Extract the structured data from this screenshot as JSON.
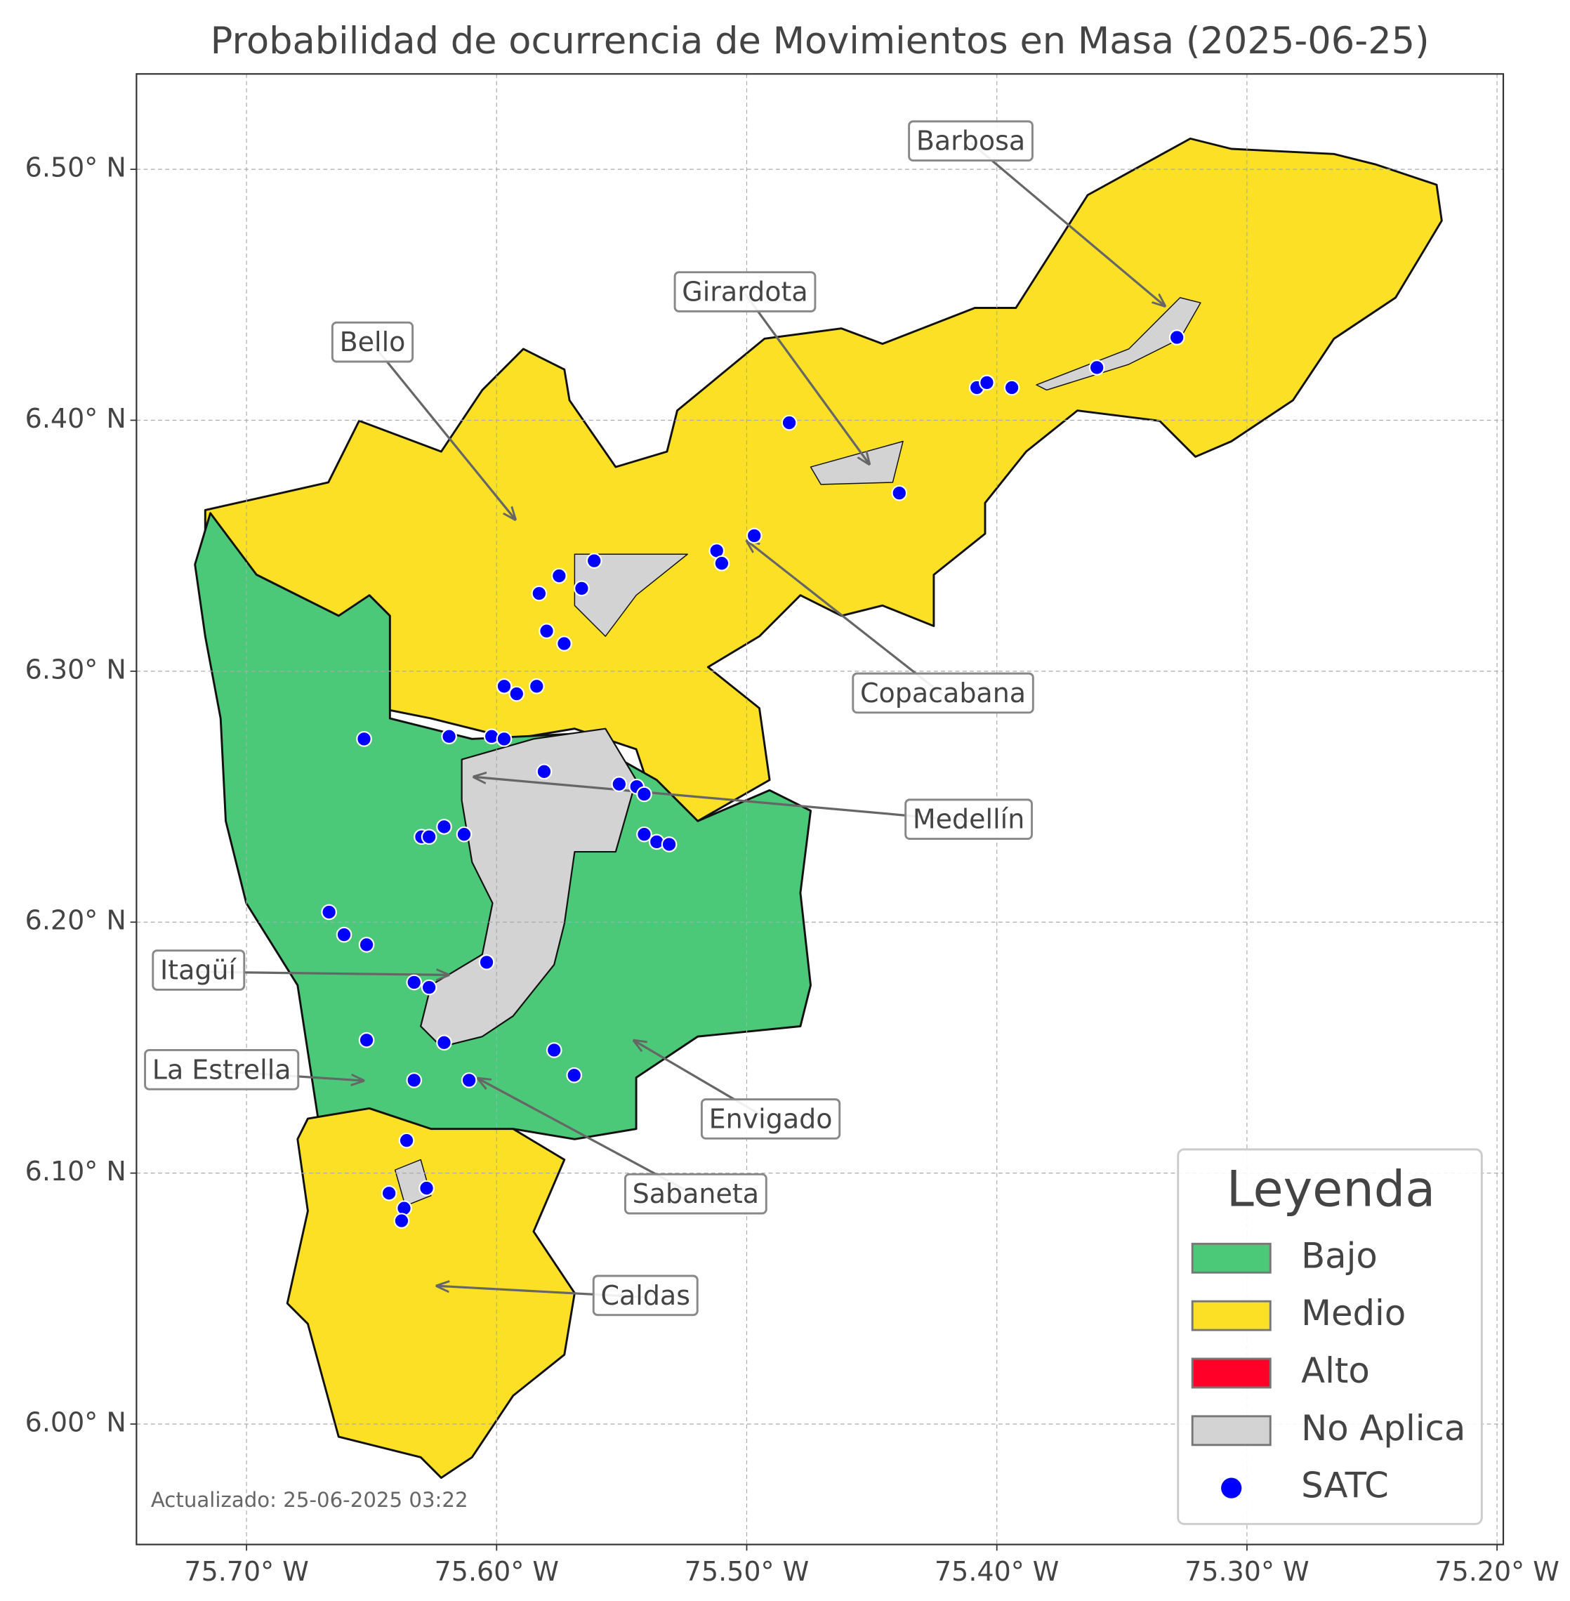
{
  "chart_data": {
    "type": "map",
    "title": "Probabilidad de ocurrencia de Movimientos en Masa (2025-06-25)",
    "xlim": [
      -75.744,
      -75.1975
    ],
    "ylim": [
      5.952,
      6.538
    ],
    "xticks": [
      {
        "value": -75.7,
        "label": "75.70° W"
      },
      {
        "value": -75.6,
        "label": "75.60° W"
      },
      {
        "value": -75.5,
        "label": "75.50° W"
      },
      {
        "value": -75.4,
        "label": "75.40° W"
      },
      {
        "value": -75.3,
        "label": "75.30° W"
      },
      {
        "value": -75.2,
        "label": "75.20° W"
      }
    ],
    "yticks": [
      {
        "value": 6.0,
        "label": "6.00° N"
      },
      {
        "value": 6.1,
        "label": "6.10° N"
      },
      {
        "value": 6.2,
        "label": "6.20° N"
      },
      {
        "value": 6.3,
        "label": "6.30° N"
      },
      {
        "value": 6.4,
        "label": "6.40° N"
      },
      {
        "value": 6.5,
        "label": "6.50° N"
      }
    ],
    "grid": true,
    "legend": "lower right",
    "legend_title": "Leyenda",
    "levels": [
      {
        "name": "Bajo",
        "color": "#4bc978"
      },
      {
        "name": "Medio",
        "color": "#fce026"
      },
      {
        "name": "Alto",
        "color": "#ff0029"
      },
      {
        "name": "No Aplica",
        "color": "#d3d3d3"
      }
    ],
    "series": [
      {
        "name": "SATC",
        "color": "#0000ff",
        "x": [
          -75.483,
          -75.439,
          -75.408,
          -75.404,
          -75.394,
          -75.36,
          -75.328,
          -75.497,
          -75.512,
          -75.51,
          -75.561,
          -75.575,
          -75.566,
          -75.583,
          -75.58,
          -75.573,
          -75.597,
          -75.592,
          -75.584,
          -75.653,
          -75.619,
          -75.602,
          -75.597,
          -75.581,
          -75.551,
          -75.544,
          -75.541,
          -75.541,
          -75.536,
          -75.531,
          -75.621,
          -75.63,
          -75.627,
          -75.613,
          -75.667,
          -75.661,
          -75.652,
          -75.604,
          -75.633,
          -75.627,
          -75.652,
          -75.621,
          -75.577,
          -75.633,
          -75.611,
          -75.569,
          -75.636,
          -75.643,
          -75.628,
          -75.637,
          -75.638
        ],
        "values": [
          6.399,
          6.371,
          6.413,
          6.415,
          6.413,
          6.421,
          6.433,
          6.354,
          6.348,
          6.343,
          6.344,
          6.338,
          6.333,
          6.331,
          6.316,
          6.311,
          6.294,
          6.291,
          6.294,
          6.273,
          6.274,
          6.274,
          6.273,
          6.26,
          6.255,
          6.254,
          6.251,
          6.235,
          6.232,
          6.231,
          6.238,
          6.234,
          6.234,
          6.235,
          6.204,
          6.195,
          6.191,
          6.184,
          6.176,
          6.174,
          6.153,
          6.152,
          6.149,
          6.137,
          6.137,
          6.139,
          6.113,
          6.092,
          6.094,
          6.086,
          6.081
        ]
      }
    ],
    "annotations": [
      "Barbosa",
      "Girardota",
      "Bello",
      "Copacabana",
      "Medellín",
      "Itagüí",
      "La Estrella",
      "Envigado",
      "Sabaneta",
      "Caldas"
    ],
    "footnote": "Actualizado: 25-06-2025 03:22"
  }
}
